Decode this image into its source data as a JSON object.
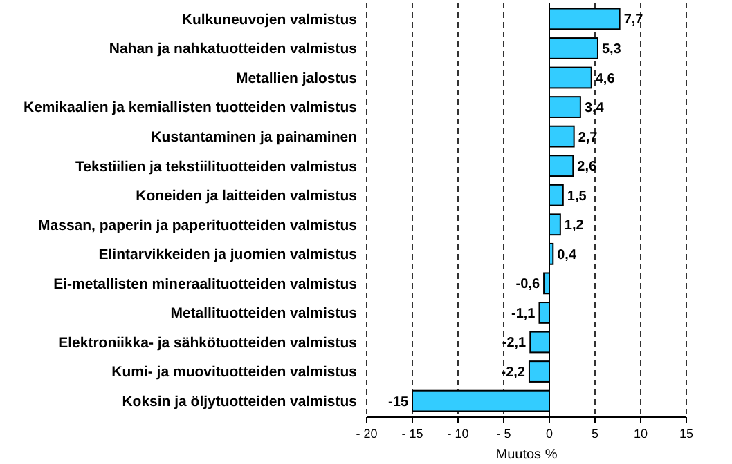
{
  "chart_data": {
    "type": "bar",
    "orientation": "horizontal",
    "xlabel": "Muutos %",
    "categories": [
      "Kulkuneuvojen valmistus",
      "Nahan ja nahkatuotteiden valmistus",
      "Metallien jalostus",
      "Kemikaalien ja kemiallisten tuotteiden valmistus",
      "Kustantaminen ja painaminen",
      "Tekstiilien ja tekstiilituotteiden valmistus",
      "Koneiden ja laitteiden valmistus",
      "Massan, paperin ja paperituotteiden valmistus",
      "Elintarvikkeiden ja juomien valmistus",
      "Ei-metallisten mineraalituotteiden valmistus",
      "Metallituotteiden valmistus",
      "Elektroniikka- ja sähkötuotteiden valmistus",
      "Kumi- ja muovituotteiden valmistus",
      "Koksin ja öljytuotteiden valmistus"
    ],
    "values": [
      7.7,
      5.3,
      4.6,
      3.4,
      2.7,
      2.6,
      1.5,
      1.2,
      0.4,
      -0.6,
      -1.1,
      -2.1,
      -2.2,
      -15
    ],
    "value_labels": [
      "7,7",
      "5,3",
      "4,6",
      "3,4",
      "2,7",
      "2,6",
      "1,5",
      "1,2",
      "0,4",
      "-0,6",
      "-1,1",
      "-2,1",
      "-2,2",
      "-15"
    ],
    "color": "#33ccff",
    "xlim": [
      -20,
      15
    ],
    "xticks": [
      {
        "value": -20,
        "label": "- 20"
      },
      {
        "value": -15,
        "label": "- 15"
      },
      {
        "value": -10,
        "label": "- 10"
      },
      {
        "value": -5,
        "label": "- 5"
      },
      0,
      5,
      10,
      15
    ],
    "grid": "x",
    "line_style": "dashed"
  }
}
